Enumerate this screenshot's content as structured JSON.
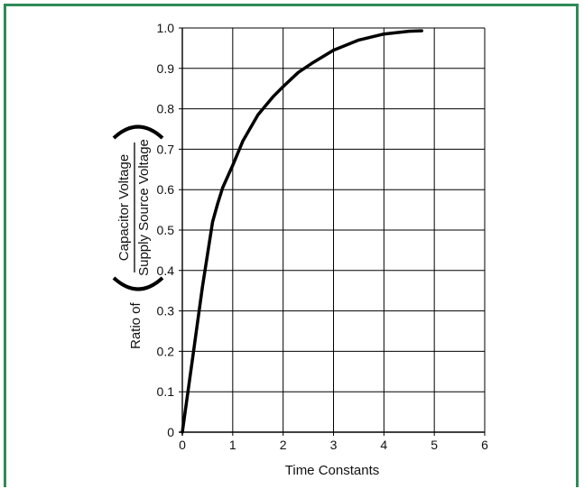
{
  "chart_data": {
    "type": "line",
    "title": "",
    "xlabel": "Time Constants",
    "ylabel": {
      "prefix": "Ratio of",
      "numerator": "Capacitor Voltage",
      "denominator": "Supply Source Voltage"
    },
    "xlim": [
      0,
      6
    ],
    "ylim": [
      0,
      1.0
    ],
    "x_ticks": [
      "0",
      "1",
      "2",
      "3",
      "4",
      "5",
      "6"
    ],
    "y_ticks": [
      "0",
      "0.1",
      "0.2",
      "0.3",
      "0.4",
      "0.5",
      "0.6",
      "0.7",
      "0.8",
      "0.9",
      "1.0"
    ],
    "grid": true,
    "series": [
      {
        "x": [
          0,
          0.2,
          0.4,
          0.6,
          0.7,
          0.8,
          1.0,
          1.2,
          1.5,
          1.8,
          2.0,
          2.3,
          2.6,
          3.0,
          3.5,
          4.0,
          4.5,
          4.75
        ],
        "y": [
          0,
          0.18,
          0.36,
          0.52,
          0.565,
          0.605,
          0.66,
          0.72,
          0.785,
          0.83,
          0.855,
          0.89,
          0.915,
          0.945,
          0.97,
          0.985,
          0.992,
          0.993
        ]
      }
    ],
    "colors": {
      "line": "#000000",
      "grid": "#000000",
      "frame": "#2e8b57"
    }
  }
}
